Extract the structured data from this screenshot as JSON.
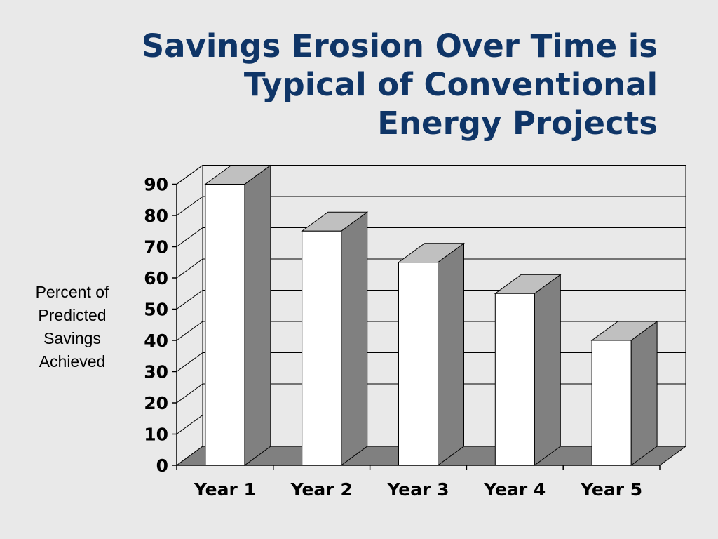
{
  "slide": {
    "title_lines": [
      "Savings Erosion Over Time is",
      "Typical of Conventional",
      "Energy Projects"
    ],
    "ylabel_lines": [
      "Percent of",
      "Predicted",
      "Savings",
      "Achieved"
    ]
  },
  "chart_data": {
    "type": "bar",
    "title": "Savings Erosion Over Time is Typical of Conventional Energy Projects",
    "ylabel": "Percent of Predicted Savings Achieved",
    "xlabel": "",
    "categories": [
      "Year 1",
      "Year 2",
      "Year 3",
      "Year 4",
      "Year 5"
    ],
    "values": [
      90,
      75,
      65,
      55,
      40
    ],
    "ylim": [
      0,
      90
    ],
    "yticks": [
      0,
      10,
      20,
      30,
      40,
      50,
      60,
      70,
      80,
      90
    ],
    "grid": true,
    "style": "3d",
    "colors": {
      "bar_front": "#ffffff",
      "bar_side": "#808080",
      "bar_top": "#c0c0c0",
      "floor": "#808080",
      "wall": "#e9e9e9",
      "axis": "#000000"
    }
  }
}
